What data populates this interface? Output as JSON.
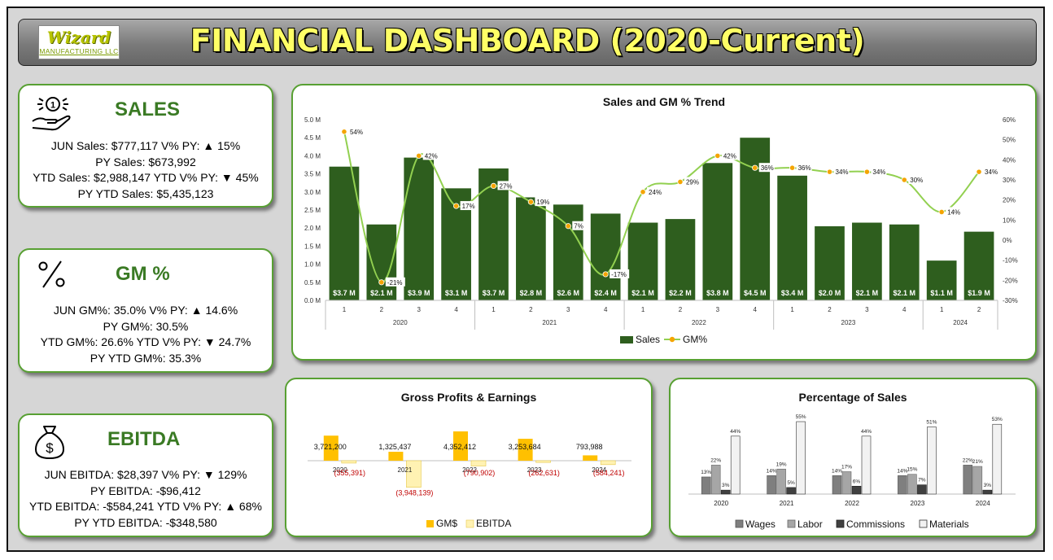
{
  "header": {
    "title": "FINANCIAL DASHBOARD (2020-Current)",
    "logo_text": "Wizard",
    "logo_sub": "MANUFACTURING LLC"
  },
  "kpis": {
    "sales": {
      "title": "SALES",
      "icon": "money-hand-icon",
      "lines": [
        "JUN Sales: $777,117  V% PY: ▲ 15%",
        "PY Sales: $673,992",
        "YTD Sales: $2,988,147  YTD V% PY: ▼ 45%",
        "PY YTD Sales: $5,435,123"
      ]
    },
    "gm": {
      "title": "GM %",
      "icon": "percent-icon",
      "lines": [
        "JUN GM%: 35.0%  V% PY: ▲ 14.6%",
        "PY GM%: 30.5%",
        "YTD GM%: 26.6%  YTD V% PY: ▼ 24.7%",
        "PY YTD GM%: 35.3%"
      ]
    },
    "ebitda": {
      "title": "EBITDA",
      "icon": "money-bag-icon",
      "lines": [
        "JUN EBITDA: $28,397  V% PY: ▼ 129%",
        "PY EBITDA: -$96,412",
        "YTD EBITDA: -$584,241  YTD V% PY: ▲ 68%",
        "PY YTD EBITDA: -$348,580"
      ]
    }
  },
  "colors": {
    "sales_bar": "#2e5e1e",
    "gm_line": "#92d050",
    "gm_marker": "#f4a400",
    "gm_bar": "#ffc000",
    "ebitda_bar": "#fff2b3",
    "negative_label": "#c00000",
    "wages": "#7f7f7f",
    "labor": "#a6a6a6",
    "commissions": "#404040",
    "materials": "#f2f2f2"
  },
  "chart_data": [
    {
      "type": "bar",
      "title": "Sales and GM % Trend",
      "years": [
        "2020",
        "2021",
        "2022",
        "2023",
        "2024"
      ],
      "quarters": [
        "1",
        "2",
        "3",
        "4",
        "1",
        "2",
        "3",
        "4",
        "1",
        "2",
        "3",
        "4",
        "1",
        "2",
        "3",
        "4",
        "1",
        "2"
      ],
      "year_spans": [
        4,
        4,
        4,
        4,
        2
      ],
      "series": [
        {
          "name": "Sales",
          "kind": "bar",
          "axis": "left",
          "values": [
            3.7,
            2.1,
            3.95,
            3.1,
            3.65,
            2.85,
            2.65,
            2.4,
            2.15,
            2.25,
            3.8,
            4.5,
            3.45,
            2.05,
            2.15,
            2.1,
            1.1,
            1.9
          ],
          "data_labels": [
            "$3.7 M",
            "$2.1 M",
            "$3.9 M",
            "$3.1 M",
            "$3.7 M",
            "$2.8 M",
            "$2.6 M",
            "$2.4 M",
            "$2.1 M",
            "$2.2 M",
            "$3.8 M",
            "$4.5 M",
            "$3.4 M",
            "$2.0 M",
            "$2.1 M",
            "$2.1 M",
            "$1.1 M",
            "$1.9 M"
          ]
        },
        {
          "name": "GM%",
          "kind": "line",
          "axis": "right",
          "values": [
            54,
            -21,
            42,
            17,
            27,
            19,
            7,
            -17,
            24,
            29,
            42,
            36,
            36,
            34,
            34,
            30,
            14,
            34
          ],
          "data_labels": [
            "54%",
            "-21%",
            "42%",
            "17%",
            "27%",
            "19%",
            "7%",
            "-17%",
            "24%",
            "29%",
            "42%",
            "36%",
            "36%",
            "34%",
            "34%",
            "30%",
            "14%",
            "34%"
          ]
        }
      ],
      "y_left_ticks": [
        "0.0 M",
        "0.5 M",
        "1.0 M",
        "1.5 M",
        "2.0 M",
        "2.5 M",
        "3.0 M",
        "3.5 M",
        "4.0 M",
        "4.5 M",
        "5.0 M"
      ],
      "y_right_ticks": [
        "-30%",
        "-20%",
        "-10%",
        "0%",
        "10%",
        "20%",
        "30%",
        "40%",
        "50%",
        "60%"
      ],
      "ylim_left": [
        0,
        5.0
      ],
      "ylim_right": [
        -30,
        60
      ],
      "legend": [
        "Sales",
        "GM%"
      ]
    },
    {
      "type": "bar",
      "title": "Gross Profits & Earnings",
      "categories": [
        "2020",
        "2021",
        "2022",
        "2023",
        "2024"
      ],
      "series": [
        {
          "name": "GM$",
          "values": [
            3721200,
            1325437,
            4352412,
            3253684,
            793988
          ],
          "labels": [
            "3,721,200",
            "1,325,437",
            "4,352,412",
            "3,253,684",
            "793,988"
          ]
        },
        {
          "name": "EBITDA",
          "values": [
            -355391,
            -3948139,
            -790902,
            -262631,
            -584241
          ],
          "labels": [
            "(355,391)",
            "(3,948,139)",
            "(790,902)",
            "(262,631)",
            "(584,241)"
          ]
        }
      ],
      "legend": [
        "GM$",
        "EBITDA"
      ]
    },
    {
      "type": "bar",
      "title": "Percentage of Sales",
      "categories": [
        "2020",
        "2021",
        "2022",
        "2023",
        "2024"
      ],
      "series": [
        {
          "name": "Wages",
          "values": [
            13,
            14,
            14,
            14,
            22
          ]
        },
        {
          "name": "Labor",
          "values": [
            22,
            19,
            17,
            15,
            21
          ]
        },
        {
          "name": "Commissions",
          "values": [
            3,
            5,
            6,
            7,
            3
          ]
        },
        {
          "name": "Materials",
          "values": [
            44,
            55,
            44,
            51,
            53
          ]
        }
      ],
      "legend": [
        "Wages",
        "Labor",
        "Commissions",
        "Materials"
      ]
    }
  ]
}
